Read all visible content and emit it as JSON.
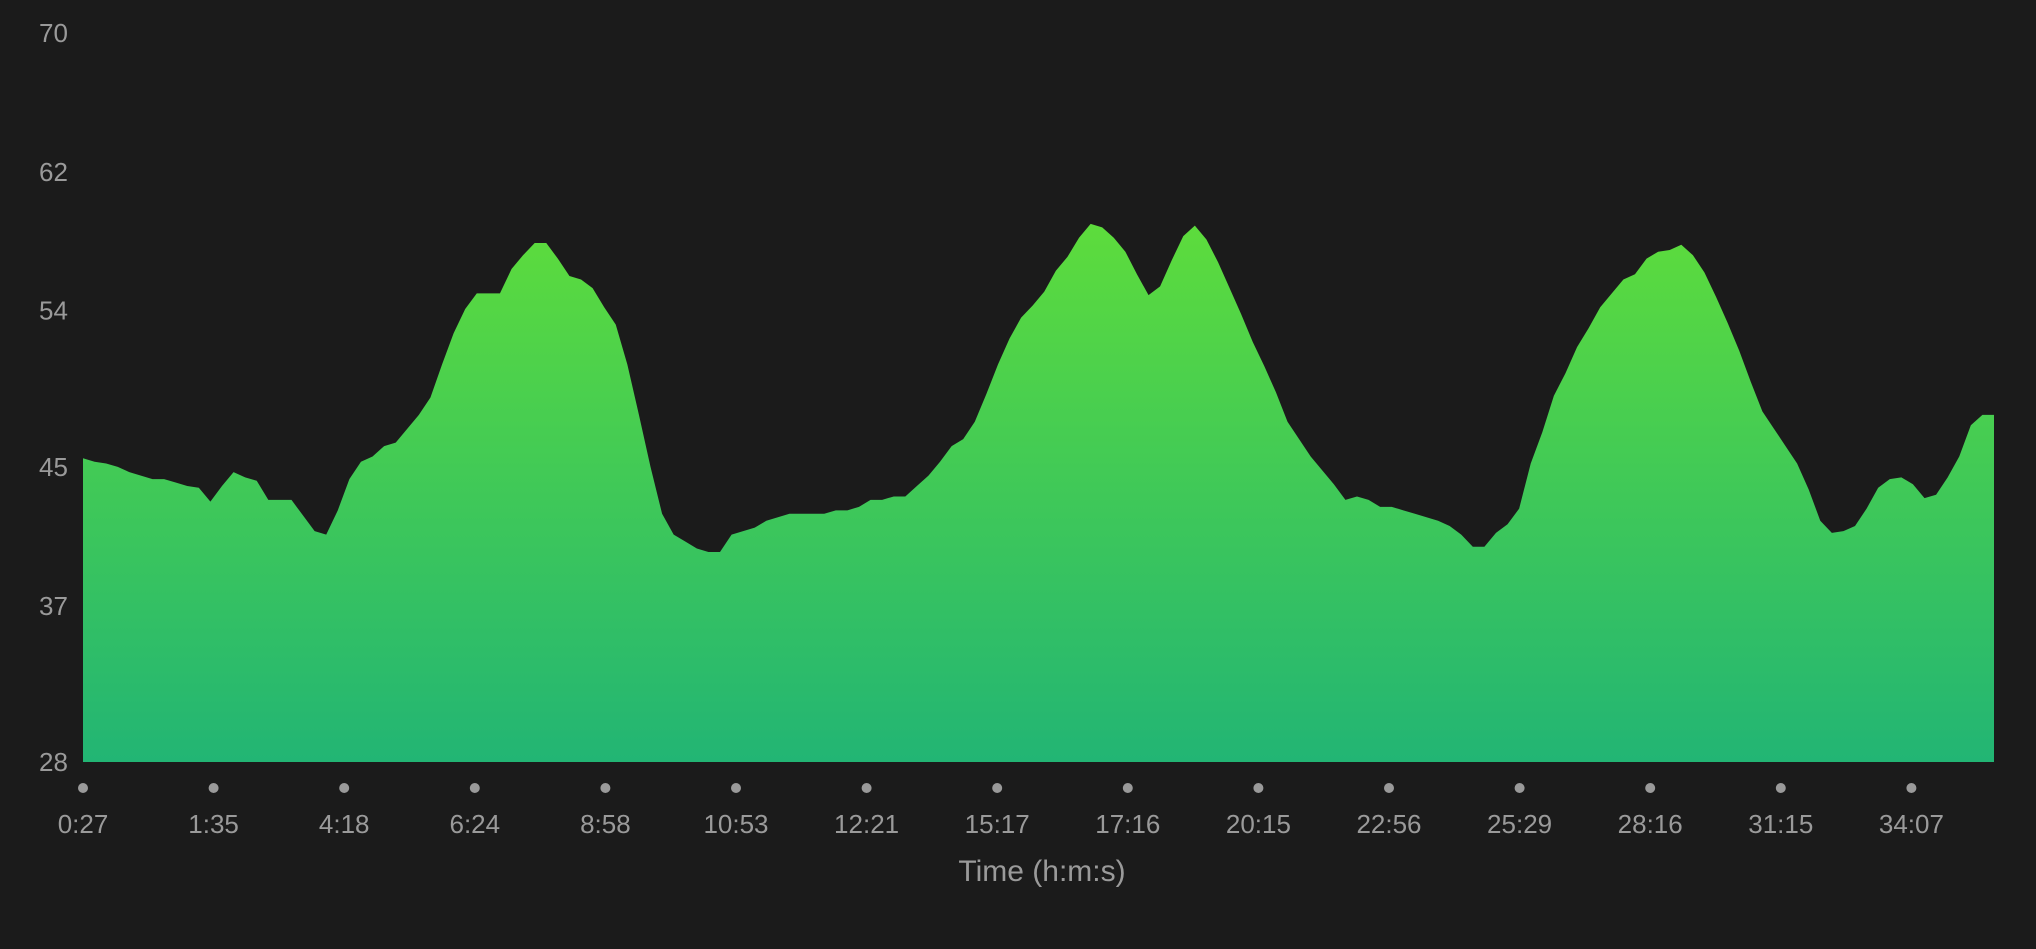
{
  "colors": {
    "background": "#1b1b1b",
    "area_top": "#5ddc3c",
    "area_bottom": "#22b574",
    "text": "#9a9a9a"
  },
  "chart_data": {
    "type": "area",
    "title": "",
    "xlabel": "Time (h:m:s)",
    "ylabel": "",
    "ylim": [
      28,
      70
    ],
    "yticks": [
      28,
      37,
      45,
      54,
      62,
      70
    ],
    "xtick_labels": [
      "0:27",
      "1:35",
      "4:18",
      "6:24",
      "8:58",
      "10:53",
      "12:21",
      "15:17",
      "17:16",
      "20:15",
      "22:56",
      "25:29",
      "28:16",
      "31:15",
      "34:07"
    ],
    "grid": false,
    "legend": "none",
    "series": [
      {
        "values": [
          45.5,
          45.3,
          45.2,
          45.0,
          44.7,
          44.5,
          44.3,
          44.3,
          44.1,
          43.9,
          43.8,
          43.0,
          43.9,
          44.7,
          44.4,
          44.2,
          43.1,
          43.1,
          43.1,
          42.2,
          41.3,
          41.1,
          42.5,
          44.3,
          45.3,
          45.6,
          46.2,
          46.4,
          47.2,
          48.0,
          49.0,
          50.9,
          52.7,
          54.1,
          55.0,
          55.0,
          55.0,
          56.4,
          57.2,
          57.9,
          57.9,
          57.0,
          56.0,
          55.8,
          55.3,
          54.2,
          53.2,
          50.9,
          48.0,
          45.0,
          42.3,
          41.1,
          40.7,
          40.3,
          40.1,
          40.1,
          41.1,
          41.3,
          41.5,
          41.9,
          42.1,
          42.3,
          42.3,
          42.3,
          42.3,
          42.5,
          42.5,
          42.7,
          43.1,
          43.1,
          43.3,
          43.3,
          43.9,
          44.5,
          45.3,
          46.2,
          46.6,
          47.6,
          49.2,
          50.9,
          52.4,
          53.6,
          54.3,
          55.1,
          56.3,
          57.1,
          58.2,
          59.0,
          58.8,
          58.2,
          57.4,
          56.1,
          54.9,
          55.4,
          56.9,
          58.3,
          58.9,
          58.1,
          56.8,
          55.3,
          53.8,
          52.2,
          50.8,
          49.3,
          47.6,
          46.6,
          45.6,
          44.8,
          44.0,
          43.1,
          43.3,
          43.1,
          42.7,
          42.7,
          42.5,
          42.3,
          42.1,
          41.9,
          41.6,
          41.1,
          40.4,
          40.4,
          41.2,
          41.7,
          42.6,
          45.2,
          47.0,
          49.1,
          50.4,
          51.9,
          53.0,
          54.2,
          55.0,
          55.8,
          56.1,
          57.0,
          57.4,
          57.5,
          57.8,
          57.2,
          56.2,
          54.8,
          53.3,
          51.7,
          49.9,
          48.2,
          47.2,
          46.2,
          45.2,
          43.7,
          41.9,
          41.2,
          41.3,
          41.6,
          42.6,
          43.8,
          44.3,
          44.4,
          44.0,
          43.2,
          43.4,
          44.4,
          45.6,
          47.4,
          48.0,
          48.0
        ]
      }
    ]
  }
}
